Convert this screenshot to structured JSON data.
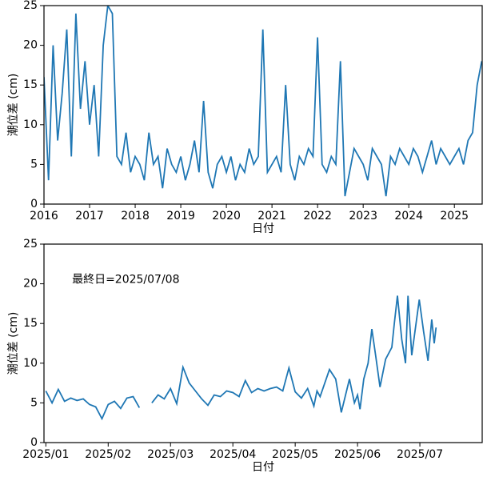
{
  "chart_data": [
    {
      "type": "line",
      "xlabel": "日付",
      "ylabel": "潮位差 (cm)",
      "color": "#1f77b4",
      "xlim": [
        2016,
        2025.61
      ],
      "ylim": [
        0,
        25
      ],
      "xticks": [
        2016,
        2017,
        2018,
        2019,
        2020,
        2021,
        2022,
        2023,
        2024,
        2025
      ],
      "yticks": [
        0,
        5,
        10,
        15,
        20,
        25
      ],
      "x": [
        2016.0,
        2016.1,
        2016.2,
        2016.3,
        2016.4,
        2016.5,
        2016.6,
        2016.7,
        2016.8,
        2016.9,
        2017.0,
        2017.1,
        2017.2,
        2017.3,
        2017.4,
        2017.5,
        2017.6,
        2017.7,
        2017.8,
        2017.9,
        2018.0,
        2018.1,
        2018.2,
        2018.3,
        2018.4,
        2018.5,
        2018.6,
        2018.7,
        2018.8,
        2018.9,
        2019.0,
        2019.1,
        2019.2,
        2019.3,
        2019.4,
        2019.5,
        2019.6,
        2019.7,
        2019.8,
        2019.9,
        2020.0,
        2020.1,
        2020.2,
        2020.3,
        2020.4,
        2020.5,
        2020.6,
        2020.7,
        2020.8,
        2020.9,
        2021.0,
        2021.1,
        2021.2,
        2021.3,
        2021.4,
        2021.5,
        2021.6,
        2021.7,
        2021.8,
        2021.9,
        2022.0,
        2022.1,
        2022.2,
        2022.3,
        2022.4,
        2022.5,
        2022.6,
        2022.7,
        2022.8,
        2022.9,
        2023.0,
        2023.1,
        2023.2,
        2023.3,
        2023.4,
        2023.5,
        2023.6,
        2023.7,
        2023.8,
        2023.9,
        2024.0,
        2024.1,
        2024.2,
        2024.3,
        2024.4,
        2024.5,
        2024.6,
        2024.7,
        2024.8,
        2024.9,
        2025.0,
        2025.1,
        2025.2,
        2025.3,
        2025.4,
        2025.5,
        2025.6
      ],
      "values": [
        16,
        3,
        20,
        8,
        14,
        22,
        6,
        24,
        12,
        18,
        10,
        15,
        6,
        20,
        25,
        24,
        6,
        5,
        9,
        4,
        6,
        5,
        3,
        9,
        5,
        6,
        2,
        7,
        5,
        4,
        6,
        3,
        5,
        8,
        4,
        13,
        4,
        2,
        5,
        6,
        4,
        6,
        3,
        5,
        4,
        7,
        5,
        6,
        22,
        4,
        5,
        6,
        4,
        15,
        5,
        3,
        6,
        5,
        7,
        6,
        21,
        5,
        4,
        6,
        5,
        18,
        1,
        4,
        7,
        6,
        5,
        3,
        7,
        6,
        5,
        1,
        6,
        5,
        7,
        6,
        5,
        7,
        6,
        4,
        6,
        8,
        5,
        7,
        6,
        5,
        6,
        7,
        5,
        8,
        9,
        15,
        18
      ]
    },
    {
      "type": "line",
      "xlabel": "日付",
      "ylabel": "潮位差 (cm)",
      "color": "#1f77b4",
      "annotation": "最終日=2025/07/08",
      "annotation_xy": [
        1.42,
        20.5
      ],
      "xlim": [
        0.97,
        8.0
      ],
      "ylim": [
        0,
        25
      ],
      "xticks": [
        {
          "value": 1,
          "label": "2025/01"
        },
        {
          "value": 2,
          "label": "2025/02"
        },
        {
          "value": 3,
          "label": "2025/03"
        },
        {
          "value": 4,
          "label": "2025/04"
        },
        {
          "value": 5,
          "label": "2025/05"
        },
        {
          "value": 6,
          "label": "2025/06"
        },
        {
          "value": 7,
          "label": "2025/07"
        }
      ],
      "yticks": [
        0,
        5,
        10,
        15,
        20,
        25
      ],
      "x": [
        1.0,
        1.1,
        1.2,
        1.3,
        1.4,
        1.5,
        1.6,
        1.7,
        1.8,
        1.9,
        2.0,
        2.1,
        2.2,
        2.3,
        2.4,
        2.5,
        2.58,
        2.7,
        2.8,
        2.9,
        3.0,
        3.1,
        3.2,
        3.3,
        3.4,
        3.5,
        3.6,
        3.7,
        3.8,
        3.9,
        4.0,
        4.1,
        4.2,
        4.3,
        4.4,
        4.5,
        4.6,
        4.7,
        4.8,
        4.9,
        5.0,
        5.1,
        5.2,
        5.3,
        5.35,
        5.4,
        5.55,
        5.65,
        5.74,
        5.87,
        5.95,
        6.0,
        6.04,
        6.1,
        6.17,
        6.23,
        6.29,
        6.36,
        6.45,
        6.55,
        6.59,
        6.64,
        6.71,
        6.77,
        6.81,
        6.87,
        6.99,
        7.06,
        7.13,
        7.19,
        7.23,
        7.26
      ],
      "values": [
        6.5,
        5,
        6.7,
        5.2,
        5.6,
        5.3,
        5.5,
        4.8,
        4.5,
        3,
        4.8,
        5.2,
        4.3,
        5.6,
        5.8,
        4.4,
        null,
        5,
        6,
        5.5,
        6.8,
        4.9,
        9.5,
        7.5,
        6.5,
        5.5,
        4.7,
        6,
        5.8,
        6.5,
        6.3,
        5.8,
        7.8,
        6.3,
        6.8,
        6.5,
        6.8,
        7,
        6.5,
        9.4,
        6.4,
        5.6,
        6.8,
        4.6,
        6.5,
        5.8,
        9.2,
        8,
        3.8,
        8,
        5,
        6,
        4.2,
        8,
        10,
        14.3,
        11,
        7,
        10.5,
        12,
        15,
        18.5,
        13,
        10,
        18.5,
        11,
        18,
        14,
        10.3,
        15.5,
        12.5,
        14.5
      ]
    }
  ]
}
